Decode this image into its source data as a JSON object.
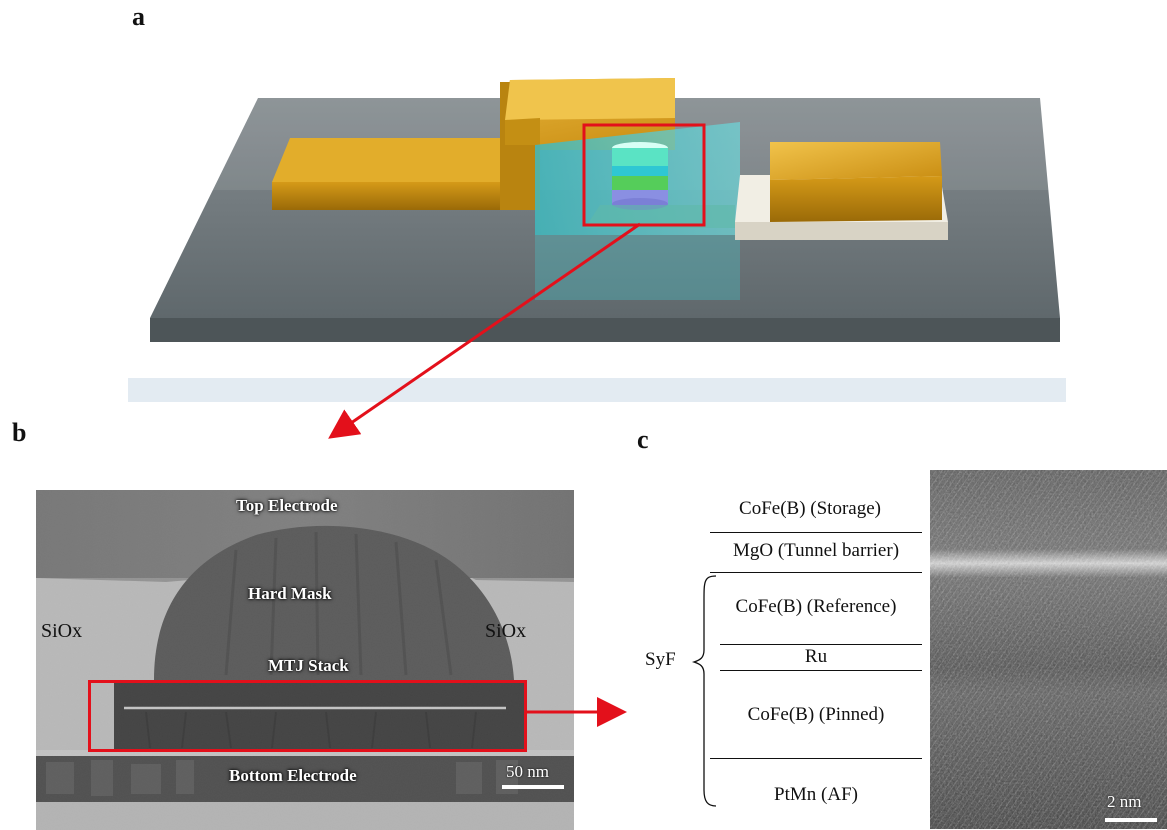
{
  "panels": {
    "a": {
      "letter": "a"
    },
    "b": {
      "letter": "b",
      "labels": {
        "top_electrode": "Top Electrode",
        "hard_mask": "Hard Mask",
        "mtj_stack": "MTJ Stack",
        "bottom_electrode": "Bottom Electrode",
        "siox_left": "SiOx",
        "siox_right": "SiOx"
      },
      "scale_bar": "50 nm"
    },
    "c": {
      "letter": "c",
      "layers": [
        "CoFe(B) (Storage)",
        "MgO (Tunnel barrier)",
        "CoFe(B) (Reference)",
        "Ru",
        "CoFe(B) (Pinned)",
        "PtMn (AF)"
      ],
      "group_label": "SyF",
      "scale_bar": "2 nm"
    }
  },
  "colors": {
    "highlight_red": "#e3101b",
    "electrode_gold": "#d9a21a",
    "substrate_gray": "#6b7478",
    "encapsulation_cyan": "#49c3c8"
  }
}
